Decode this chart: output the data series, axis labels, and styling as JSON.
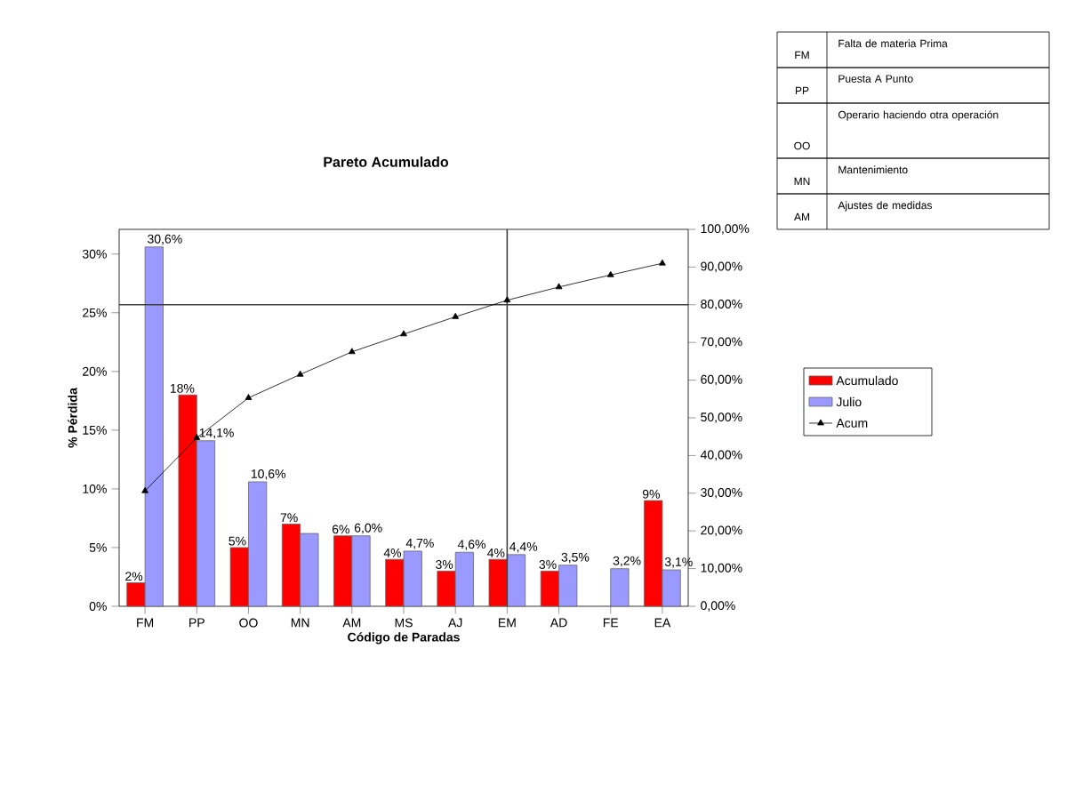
{
  "chart_data": {
    "type": "bar",
    "title": "Pareto Acumulado",
    "xlabel": "Código de Paradas",
    "ylabel": "% Pérdida",
    "categories": [
      "FM",
      "PP",
      "OO",
      "MN",
      "AM",
      "MS",
      "AJ",
      "EM",
      "AD",
      "FE",
      "EA"
    ],
    "series": [
      {
        "name": "Acumulado",
        "color": "#ff0000",
        "values": [
          2,
          18,
          5,
          7,
          6,
          4,
          3,
          4,
          3,
          null,
          9
        ],
        "value_labels": [
          "2%",
          "18%",
          "5%",
          "7%",
          "6%",
          "4%",
          "3%",
          "4%",
          "3%",
          null,
          "9%"
        ]
      },
      {
        "name": "Julio",
        "color": "#9999ff",
        "values": [
          30.6,
          14.1,
          10.6,
          6.2,
          6.0,
          4.7,
          4.6,
          4.4,
          3.5,
          3.2,
          3.1
        ],
        "value_labels": [
          "30,6%",
          "14,1%",
          "10,6%",
          null,
          "6,0%",
          "4,7%",
          "4,6%",
          "4,4%",
          "3,5%",
          "3,2%",
          "3,1%"
        ]
      },
      {
        "name": "Acum",
        "type": "line",
        "axis": "y2",
        "color": "#000000",
        "marker": "triangle",
        "values": [
          30.6,
          44.7,
          55.3,
          61.5,
          67.5,
          72.2,
          76.8,
          81.2,
          84.7,
          87.9,
          91.0
        ]
      }
    ],
    "ylim": [
      0,
      32.1
    ],
    "yticks": [
      {
        "value": 0,
        "label": "0%"
      },
      {
        "value": 5,
        "label": "5%"
      },
      {
        "value": 10,
        "label": "10%"
      },
      {
        "value": 15,
        "label": "15%"
      },
      {
        "value": 20,
        "label": "20%"
      },
      {
        "value": 25,
        "label": "25%"
      },
      {
        "value": 30,
        "label": "30%"
      }
    ],
    "y2lim": [
      0,
      100
    ],
    "y2ticks": [
      {
        "value": 0,
        "label": "0,00%"
      },
      {
        "value": 10,
        "label": "10,00%"
      },
      {
        "value": 20,
        "label": "20,00%"
      },
      {
        "value": 30,
        "label": "30,00%"
      },
      {
        "value": 40,
        "label": "40,00%"
      },
      {
        "value": 50,
        "label": "50,00%"
      },
      {
        "value": 60,
        "label": "60,00%"
      },
      {
        "value": 70,
        "label": "70,00%"
      },
      {
        "value": 80,
        "label": "80,00%"
      },
      {
        "value": 90,
        "label": "90,00%"
      },
      {
        "value": 100,
        "label": "100,00%"
      }
    ],
    "ref_lines": [
      {
        "axis": "y2",
        "value": 80,
        "color": "#404040"
      },
      {
        "axis": "x",
        "value": "EM",
        "color": "#404040"
      }
    ],
    "legend": "right",
    "annotations": [
      "FM",
      "Falta de materia Prima",
      "PP",
      "Puesta A Punto",
      "OO",
      "Operario haciendo otra operación",
      "MN",
      "Mantenimiento",
      "AM",
      "Ajustes de medidas"
    ]
  }
}
